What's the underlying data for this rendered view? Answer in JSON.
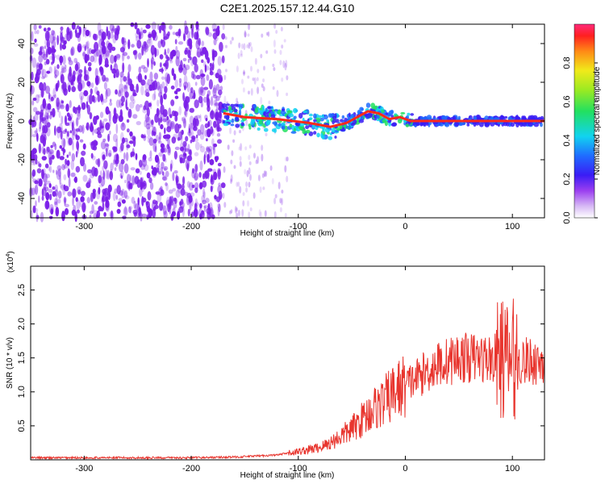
{
  "title": "C2E1.2025.157.12.44.G10",
  "colors": {
    "spectrogram_dot": "#7b1fe8",
    "snr_line": "#e8352e",
    "ridge": "#ff2a1a",
    "frame": "#000000"
  },
  "chart_data": [
    {
      "type": "heatmap",
      "xlabel": "Height of straight line (km)",
      "ylabel": "Frequency (Hz)",
      "xlim": [
        -350,
        130
      ],
      "ylim": [
        -50,
        50
      ],
      "xticks": [
        -300,
        -200,
        -100,
        0,
        100
      ],
      "yticks": [
        -40,
        -20,
        0,
        20,
        40
      ],
      "colorbar": {
        "label": "Normalized spectral amplitude",
        "range": [
          0,
          1
        ],
        "ticks": [
          "0.0",
          "0.2",
          "0.4",
          "0.6",
          "0.8"
        ],
        "tick_values": [
          0,
          0.2,
          0.4,
          0.6,
          0.8
        ]
      },
      "features": {
        "noise_region_x": [
          -350,
          -170
        ],
        "signal_start_x": -170,
        "ridge": [
          {
            "x": -170,
            "y": 4
          },
          {
            "x": -150,
            "y": 2
          },
          {
            "x": -120,
            "y": 1
          },
          {
            "x": -90,
            "y": -1
          },
          {
            "x": -70,
            "y": -3
          },
          {
            "x": -55,
            "y": -1
          },
          {
            "x": -45,
            "y": 2
          },
          {
            "x": -35,
            "y": 5
          },
          {
            "x": -25,
            "y": 4
          },
          {
            "x": -15,
            "y": 1
          },
          {
            "x": -5,
            "y": 2
          },
          {
            "x": 5,
            "y": 0
          },
          {
            "x": 20,
            "y": 0
          },
          {
            "x": 60,
            "y": 0
          },
          {
            "x": 100,
            "y": 0
          },
          {
            "x": 130,
            "y": 0
          }
        ]
      }
    },
    {
      "type": "line",
      "xlabel": "Height of straight line (km)",
      "ylabel": "SNR (10 * v/v)",
      "ylabel_exponent": "(x10",
      "ylabel_exponent_power": "4",
      "ylabel_exponent_close": ")",
      "xlim": [
        -350,
        130
      ],
      "ylim": [
        0,
        2.85
      ],
      "xticks": [
        -300,
        -200,
        -100,
        0,
        100
      ],
      "yticks": [
        "0.5",
        "1.0",
        "1.5",
        "2.0",
        "2.5"
      ],
      "ytick_values": [
        0.5,
        1.0,
        1.5,
        2.0,
        2.5
      ],
      "series": [
        {
          "x": [
            -350,
            -300,
            -250,
            -200,
            -160,
            -120,
            -100,
            -90,
            -80,
            -70,
            -60,
            -50,
            -40,
            -30,
            -20,
            -10,
            0,
            10,
            20,
            30,
            40,
            50,
            60,
            70,
            80,
            90,
            95,
            100,
            105,
            110,
            120,
            130
          ],
          "y": [
            0.03,
            0.03,
            0.03,
            0.03,
            0.04,
            0.07,
            0.12,
            0.15,
            0.18,
            0.25,
            0.35,
            0.45,
            0.6,
            0.75,
            0.85,
            1.0,
            1.1,
            1.2,
            1.3,
            1.4,
            1.45,
            1.5,
            1.5,
            1.5,
            1.48,
            1.5,
            1.45,
            1.5,
            1.45,
            1.45,
            1.45,
            1.45
          ]
        }
      ]
    }
  ]
}
